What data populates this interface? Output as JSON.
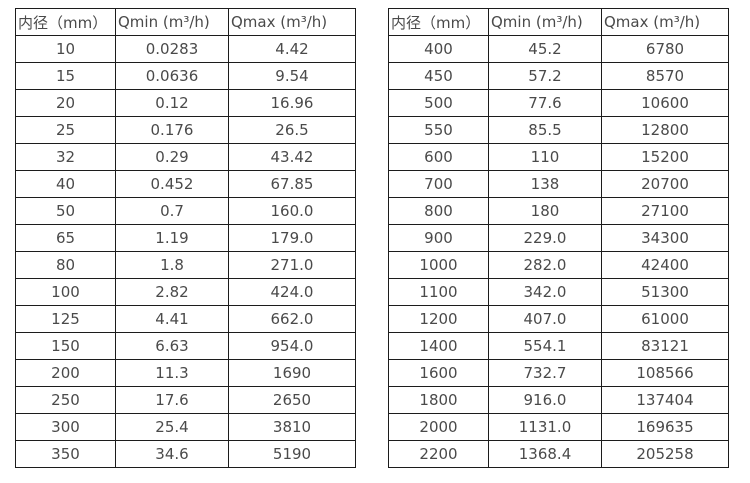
{
  "page": {
    "background": "#ffffff",
    "text_color": "#4a4a4a",
    "border_color": "#1c1c1c"
  },
  "tables": [
    {
      "name": "flow-table-small-diameters",
      "headers": [
        "内径（mm）",
        "Qmin (m³/h)",
        "Qmax (m³/h)"
      ],
      "rows": [
        [
          "10",
          "0.0283",
          "4.42"
        ],
        [
          "15",
          "0.0636",
          "9.54"
        ],
        [
          "20",
          "0.12",
          "16.96"
        ],
        [
          "25",
          "0.176",
          "26.5"
        ],
        [
          "32",
          "0.29",
          "43.42"
        ],
        [
          "40",
          "0.452",
          "67.85"
        ],
        [
          "50",
          "0.7",
          "160.0"
        ],
        [
          "65",
          "1.19",
          "179.0"
        ],
        [
          "80",
          "1.8",
          "271.0"
        ],
        [
          "100",
          "2.82",
          "424.0"
        ],
        [
          "125",
          "4.41",
          "662.0"
        ],
        [
          "150",
          "6.63",
          "954.0"
        ],
        [
          "200",
          "11.3",
          "1690"
        ],
        [
          "250",
          "17.6",
          "2650"
        ],
        [
          "300",
          "25.4",
          "3810"
        ],
        [
          "350",
          "34.6",
          "5190"
        ]
      ]
    },
    {
      "name": "flow-table-large-diameters",
      "headers": [
        "内径（mm）",
        "Qmin (m³/h)",
        "Qmax (m³/h)"
      ],
      "rows": [
        [
          "400",
          "45.2",
          "6780"
        ],
        [
          "450",
          "57.2",
          "8570"
        ],
        [
          "500",
          "77.6",
          "10600"
        ],
        [
          "550",
          "85.5",
          "12800"
        ],
        [
          "600",
          "110",
          "15200"
        ],
        [
          "700",
          "138",
          "20700"
        ],
        [
          "800",
          "180",
          "27100"
        ],
        [
          "900",
          "229.0",
          "34300"
        ],
        [
          "1000",
          "282.0",
          "42400"
        ],
        [
          "1100",
          "342.0",
          "51300"
        ],
        [
          "1200",
          "407.0",
          "61000"
        ],
        [
          "1400",
          "554.1",
          "83121"
        ],
        [
          "1600",
          "732.7",
          "108566"
        ],
        [
          "1800",
          "916.0",
          "137404"
        ],
        [
          "2000",
          "1131.0",
          "169635"
        ],
        [
          "2200",
          "1368.4",
          "205258"
        ]
      ]
    }
  ]
}
